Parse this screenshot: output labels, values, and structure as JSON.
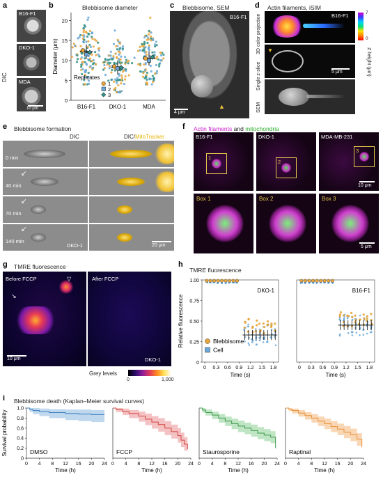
{
  "panels": {
    "a": {
      "label": "a",
      "side_label": "DIC",
      "tiles": [
        "B16-F1",
        "DKO-1",
        "MDA"
      ],
      "scale": "10 μm"
    },
    "b": {
      "label": "b",
      "title": "Blebbisome diameter",
      "legend_title": "Replicates",
      "colors": {
        "r1": "#e7a43a",
        "r2": "#6aa7d8",
        "r3": "#2f8f84"
      }
    },
    "c": {
      "label": "c",
      "title": "Blebbisome, SEM",
      "tag": "B16-F1",
      "scale": "4 μm"
    },
    "d": {
      "label": "d",
      "title": "Actin filaments, iSIM",
      "row_labels": [
        "3D color projection",
        "Single z-slice",
        "SEM"
      ],
      "tag": "B16-F1",
      "colorbar_label": "Z height (μm)",
      "colorbar_ticks": [
        "7",
        "0"
      ],
      "scale": "5 μm"
    },
    "e": {
      "label": "e",
      "title": "Blebbisome formation",
      "col_headers": [
        "DIC",
        "DIC/",
        "MitoTracker"
      ],
      "times": [
        "0 min",
        "40 min",
        "70 min",
        "140 min"
      ],
      "tag": "DKO-1",
      "scale": "20 μm"
    },
    "f": {
      "label": "f",
      "title_a": "Actin filaments",
      "title_and": " and ",
      "title_b": "mitochondria",
      "tiles": [
        "B16-F1",
        "DKO-1",
        "MDA-MB-231"
      ],
      "box_nums": [
        "1",
        "2",
        "3"
      ],
      "boxes": [
        "Box 1",
        "Box 2",
        "Box 3"
      ],
      "scale_top": "10 μm",
      "scale_bottom": "5 μm"
    },
    "g": {
      "label": "g",
      "title": "TMRE fluorescence",
      "before": "Before FCCP",
      "after": "After FCCP",
      "tag": "DKO-1",
      "scale": "10 μm",
      "colorbar_label": "Grey levels",
      "colorbar_ticks": [
        "0",
        "1,000"
      ]
    },
    "h": {
      "label": "h",
      "title": "TMRE fluorescence",
      "ylabel": "Relative fluorescence",
      "legend": [
        "Blebbisome",
        "Cell"
      ]
    },
    "i": {
      "label": "i",
      "title": "Blebbisome death (Kaplan–Meier survival curves)",
      "ylabel": "Survival probability"
    }
  },
  "chart_data": [
    {
      "id": "b",
      "type": "scatter",
      "title": "Blebbisome diameter",
      "xlabel": "",
      "ylabel": "Diameter (μm)",
      "categories": [
        "B16-F1",
        "DKO-1",
        "MDA"
      ],
      "ylim": [
        0,
        22
      ],
      "yticks": [
        0,
        5,
        10,
        15,
        20
      ],
      "legend_title": "Replicates",
      "series": [
        {
          "name": "1",
          "color": "#e7a43a",
          "replicate_means": [
            12.5,
            8.5,
            10.5
          ]
        },
        {
          "name": "2",
          "color": "#6aa7d8",
          "replicate_means": [
            11.5,
            8.0,
            10.0
          ]
        },
        {
          "name": "3",
          "color": "#2f8f84",
          "replicate_means": [
            12.0,
            8.2,
            10.8
          ]
        }
      ],
      "medians": [
        12.2,
        8.2,
        10.5
      ],
      "spread": [
        [
          4,
          21
        ],
        [
          2,
          19
        ],
        [
          4,
          21
        ]
      ]
    },
    {
      "id": "h",
      "type": "scatter",
      "title": "TMRE fluorescence",
      "ylabel": "Relative fluorescence",
      "xlabel": "Time (s)",
      "ylim": [
        0,
        1.0
      ],
      "yticks": [
        "0",
        "0.25",
        "0.50",
        "0.75",
        "1.00"
      ],
      "xticks": [
        "0",
        "0.3",
        "0.6",
        "0.9",
        "1.2",
        "1.5",
        "1.8"
      ],
      "xlim": [
        0,
        1.9
      ],
      "panels": [
        {
          "name": "DKO-1",
          "pre_t": [
            0.05,
            0.15,
            0.25,
            0.35,
            0.45,
            0.55,
            0.65,
            0.75,
            0.85
          ],
          "post_t": [
            1.05,
            1.15,
            1.25,
            1.35,
            1.45,
            1.55,
            1.65,
            1.75,
            1.85
          ],
          "pre_bleb": 0.99,
          "post_bleb": 0.44,
          "pre_cell": 0.98,
          "post_cell": 0.33
        },
        {
          "name": "B16-F1",
          "pre_t": [
            0.05,
            0.15,
            0.25,
            0.35,
            0.45,
            0.55,
            0.65,
            0.75,
            0.85
          ],
          "post_t": [
            1.05,
            1.15,
            1.25,
            1.35,
            1.45,
            1.55,
            1.65,
            1.75,
            1.85
          ],
          "pre_bleb": 0.99,
          "post_bleb": 0.52,
          "pre_cell": 0.98,
          "post_cell": 0.45
        }
      ],
      "series": [
        {
          "name": "Blebbisome",
          "color": "#e7a43a"
        },
        {
          "name": "Cell",
          "color": "#6aa7d8"
        }
      ]
    },
    {
      "id": "i",
      "type": "line",
      "title": "Blebbisome death (Kaplan–Meier survival curves)",
      "ylabel": "Survival probability",
      "xlabel": "Time (h)",
      "xlim": [
        0,
        24
      ],
      "ylim": [
        0,
        1.0
      ],
      "yticks": [
        "0",
        "0.2",
        "0.4",
        "0.6",
        "0.8",
        "1.0"
      ],
      "xticks": [
        "0",
        "4",
        "8",
        "12",
        "16",
        "20",
        "24"
      ],
      "series": [
        {
          "name": "DMSO",
          "color": "#3b7dbf",
          "fill": "#a9cbe8",
          "t": [
            0,
            1,
            2,
            4,
            7,
            12,
            16,
            20,
            24
          ],
          "s": [
            1.0,
            0.97,
            0.95,
            0.93,
            0.91,
            0.89,
            0.88,
            0.87,
            0.87
          ],
          "lo": [
            1.0,
            0.92,
            0.88,
            0.84,
            0.8,
            0.76,
            0.74,
            0.72,
            0.72
          ],
          "hi": [
            1.0,
            1.0,
            1.0,
            0.99,
            0.98,
            0.97,
            0.97,
            0.96,
            0.96
          ]
        },
        {
          "name": "FCCP",
          "color": "#d0463f",
          "fill": "#f1aeb0",
          "t": [
            0,
            1,
            3,
            5,
            8,
            10,
            12,
            14,
            16,
            18,
            20,
            21,
            22,
            23
          ],
          "s": [
            1.0,
            0.97,
            0.93,
            0.89,
            0.84,
            0.78,
            0.72,
            0.67,
            0.6,
            0.53,
            0.45,
            0.36,
            0.28,
            0.18
          ],
          "lo": [
            1.0,
            0.92,
            0.86,
            0.8,
            0.73,
            0.66,
            0.59,
            0.53,
            0.46,
            0.39,
            0.31,
            0.22,
            0.15,
            0.05
          ],
          "hi": [
            1.0,
            1.0,
            0.99,
            0.96,
            0.93,
            0.89,
            0.84,
            0.8,
            0.74,
            0.67,
            0.6,
            0.51,
            0.42,
            0.32
          ]
        },
        {
          "name": "Staurosporine",
          "color": "#3e9a4b",
          "fill": "#a9dcb0",
          "t": [
            0,
            1,
            2,
            4,
            6,
            8,
            10,
            12,
            14,
            16,
            18,
            20,
            22,
            23.5
          ],
          "s": [
            1.0,
            0.96,
            0.91,
            0.86,
            0.8,
            0.74,
            0.69,
            0.64,
            0.6,
            0.55,
            0.5,
            0.46,
            0.42,
            0.2
          ],
          "lo": [
            1.0,
            0.91,
            0.85,
            0.78,
            0.71,
            0.64,
            0.58,
            0.52,
            0.48,
            0.43,
            0.38,
            0.34,
            0.3,
            0.05
          ],
          "hi": [
            1.0,
            1.0,
            0.97,
            0.93,
            0.88,
            0.83,
            0.79,
            0.75,
            0.71,
            0.67,
            0.62,
            0.58,
            0.54,
            0.35
          ]
        },
        {
          "name": "Raptinal",
          "color": "#e8903a",
          "fill": "#f7c99c",
          "t": [
            0,
            1,
            2,
            4,
            6,
            8,
            10,
            12,
            14,
            16,
            18,
            20,
            22,
            23.5
          ],
          "s": [
            1.0,
            0.98,
            0.95,
            0.9,
            0.85,
            0.8,
            0.74,
            0.69,
            0.63,
            0.58,
            0.52,
            0.47,
            0.38,
            0.22
          ],
          "lo": [
            1.0,
            0.94,
            0.89,
            0.83,
            0.77,
            0.71,
            0.64,
            0.58,
            0.52,
            0.46,
            0.4,
            0.34,
            0.25,
            0.1
          ],
          "hi": [
            1.0,
            1.0,
            0.99,
            0.96,
            0.92,
            0.88,
            0.83,
            0.79,
            0.74,
            0.69,
            0.64,
            0.59,
            0.5,
            0.35
          ]
        }
      ]
    }
  ]
}
